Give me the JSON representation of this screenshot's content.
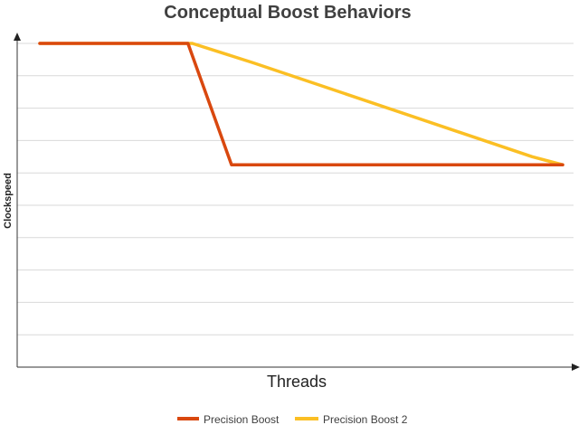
{
  "chart_data": {
    "type": "line",
    "title": "Conceptual Boost Behaviors",
    "xlabel": "Threads",
    "ylabel": "Clockspeed",
    "xlim": [
      0,
      12
    ],
    "ylim": [
      0,
      10
    ],
    "grid": true,
    "legend_position": "bottom",
    "series": [
      {
        "name": "Precision Boost",
        "color": "#d9480f",
        "points": [
          [
            0,
            10
          ],
          [
            3.4,
            10
          ],
          [
            4.4,
            6.25
          ],
          [
            12,
            6.25
          ]
        ]
      },
      {
        "name": "Precision Boost 2",
        "color": "#fbbf24",
        "points": [
          [
            0,
            10
          ],
          [
            3.5,
            10
          ],
          [
            4.9,
            9.4
          ],
          [
            11.3,
            6.5
          ],
          [
            12,
            6.25
          ]
        ]
      }
    ]
  }
}
